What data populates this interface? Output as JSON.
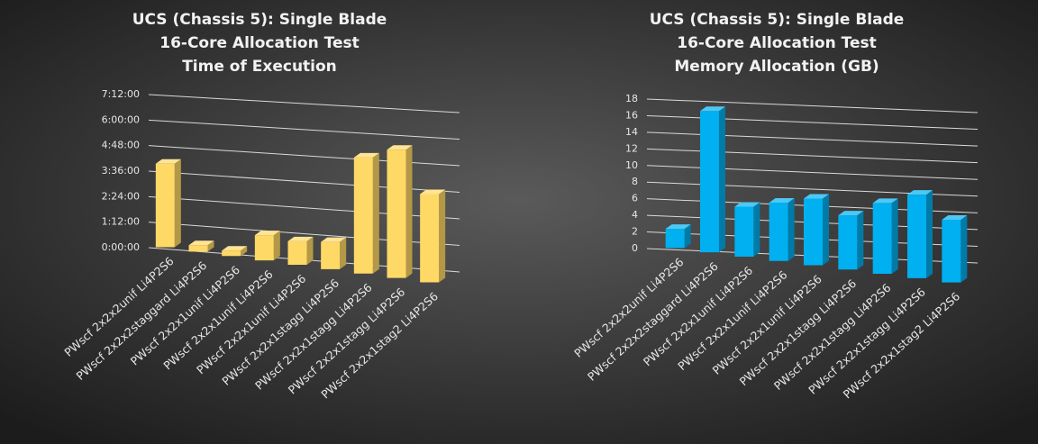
{
  "chart_data": [
    {
      "type": "bar3d",
      "title": [
        "UCS (Chassis 5): Single Blade",
        "16-Core Allocation Test",
        "Time of Execution"
      ],
      "categories": [
        "PWscf 2x2x2unif Li4P2S6",
        "PWscf 2x2x2staggard Li4P2S6",
        "PWscf 2x2x1unif Li4P2S6",
        "PWscf 2x2x1unif Li4P2S6",
        "PWscf 2x2x1unif Li4P2S6",
        "PWscf 2x2x1stagg Li4P2S6",
        "PWscf 2x2x1stagg Li4P2S6",
        "PWscf 2x2x1stagg Li4P2S6",
        "PWscf 2x2x1stag2 Li4P2S6"
      ],
      "values": [
        235,
        18,
        15,
        70,
        65,
        75,
        318,
        350,
        240
      ],
      "color": "#ffd966",
      "ylim": [
        0,
        432
      ],
      "yticks": [
        {
          "value": 0,
          "label": "0:00:00"
        },
        {
          "value": 72,
          "label": "1:12:00"
        },
        {
          "value": 144,
          "label": "2:24:00"
        },
        {
          "value": 216,
          "label": "3:36:00"
        },
        {
          "value": 288,
          "label": "4:48:00"
        },
        {
          "value": 360,
          "label": "6:00:00"
        },
        {
          "value": 432,
          "label": "7:12:00"
        }
      ],
      "grid": true
    },
    {
      "type": "bar3d",
      "title": [
        "UCS (Chassis 5): Single Blade",
        "16-Core Allocation Test",
        "Memory Allocation (GB)"
      ],
      "categories": [
        "PWscf 2x2x2unif Li4P2S6",
        "PWscf 2x2x2staggard Li4P2S6",
        "PWscf 2x2x1unif Li4P2S6",
        "PWscf 2x2x1unif Li4P2S6",
        "PWscf 2x2x1unif Li4P2S6",
        "PWscf 2x2x1stagg Li4P2S6",
        "PWscf 2x2x1stagg Li4P2S6",
        "PWscf 2x2x1stagg Li4P2S6",
        "PWscf 2x2x1stag2 Li4P2S6"
      ],
      "values": [
        2.3,
        17,
        6,
        7,
        8,
        6.5,
        8.5,
        10,
        7.5
      ],
      "color": "#00b0f0",
      "ylim": [
        0,
        18
      ],
      "yticks": [
        0,
        2,
        4,
        6,
        8,
        10,
        12,
        14,
        16,
        18
      ],
      "grid": true
    }
  ]
}
